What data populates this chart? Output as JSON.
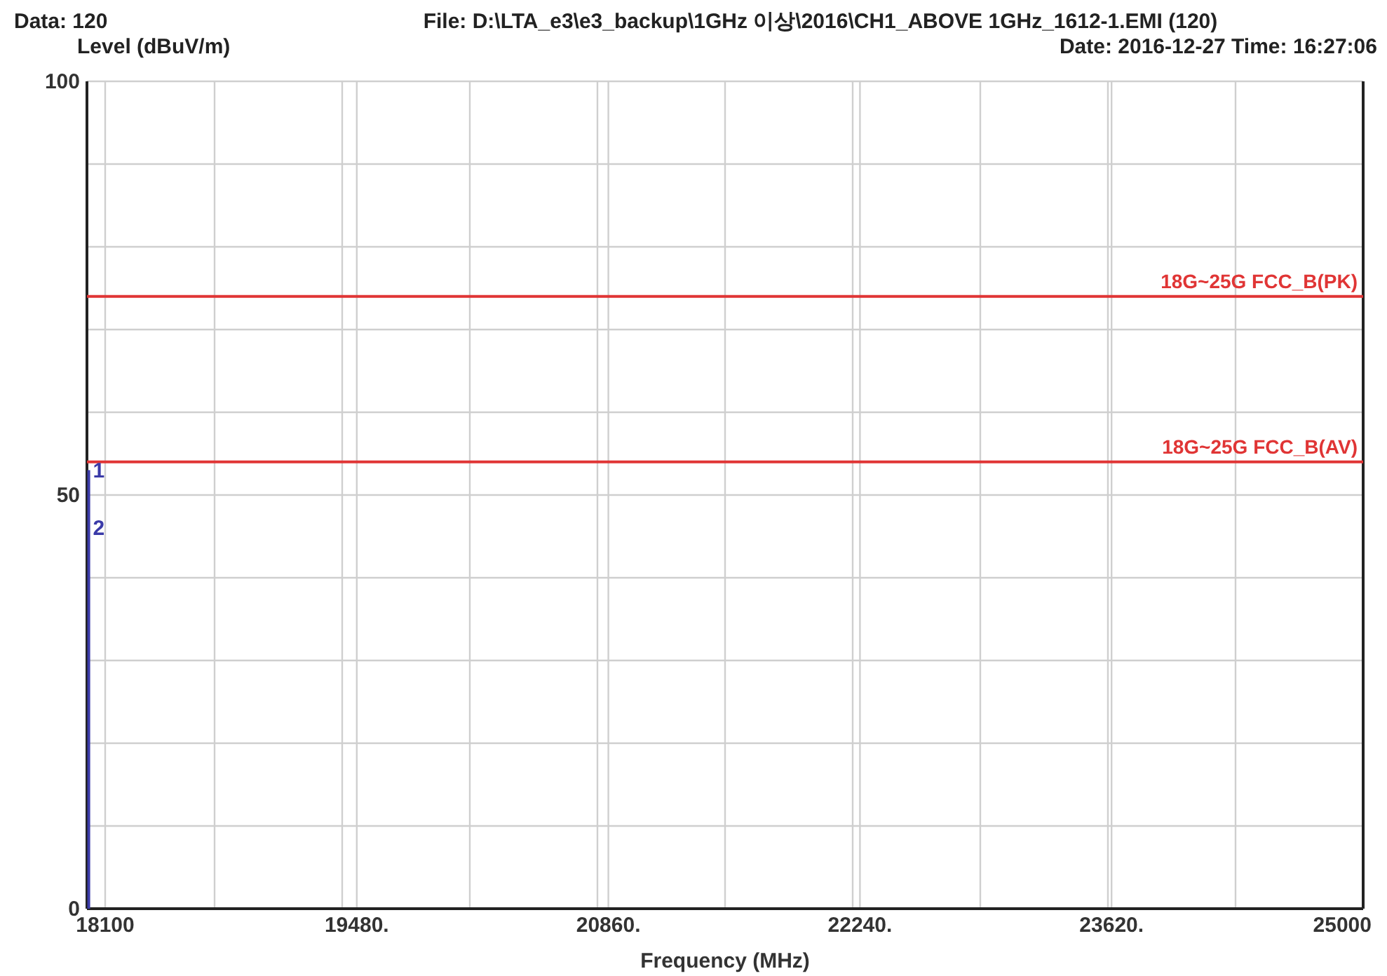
{
  "chart_data": {
    "type": "line",
    "title": "File: D:\\LTA_e3\\e3_backup\\1GHz 이상\\2016\\CH1_ABOVE 1GHz_1612-1.EMI  (120)",
    "xlabel": "Frequency (MHz)",
    "ylabel": "Level (dBuV/m)",
    "annotations": [
      "Data: 120",
      "Date: 2016-12-27  Time: 16:27:06",
      {
        "text": "1",
        "x": 18010,
        "y": 53
      },
      {
        "text": "2",
        "x": 18010,
        "y": 46
      }
    ],
    "xlim": [
      18000,
      25000
    ],
    "xticks": [
      18100,
      {
        "value": 18700,
        "label": null
      },
      {
        "value": 19400,
        "label": null
      },
      {
        "value": 19480,
        "label": "19480."
      },
      {
        "value": 20100,
        "label": null
      },
      {
        "value": 20800,
        "label": null
      },
      {
        "value": 20860,
        "label": "20860."
      },
      {
        "value": 21500,
        "label": null
      },
      {
        "value": 22200,
        "label": null
      },
      {
        "value": 22240,
        "label": "22240."
      },
      {
        "value": 22900,
        "label": null
      },
      {
        "value": 23600,
        "label": null
      },
      {
        "value": 23620,
        "label": "23620."
      },
      {
        "value": 24300,
        "label": null
      },
      25000
    ],
    "ylim": [
      0,
      100
    ],
    "yticks": [
      0,
      {
        "value": 10,
        "label": null
      },
      {
        "value": 20,
        "label": null
      },
      {
        "value": 30,
        "label": null
      },
      {
        "value": 40,
        "label": null
      },
      50,
      {
        "value": 60,
        "label": null
      },
      {
        "value": 70,
        "label": null
      },
      {
        "value": 80,
        "label": null
      },
      {
        "value": 90,
        "label": null
      },
      100
    ],
    "grid": true,
    "series": [
      {
        "color": "#3a3aa8",
        "x": [
          18010,
          18010
        ],
        "values": [
          0,
          53
        ]
      }
    ],
    "ref_lines": [
      {
        "axis": "y",
        "value": 74,
        "label": "18G~25G FCC_B(PK)",
        "color": "#e03535"
      },
      {
        "axis": "y",
        "value": 54,
        "label": "18G~25G FCC_B(AV)",
        "color": "#e03535"
      }
    ]
  }
}
